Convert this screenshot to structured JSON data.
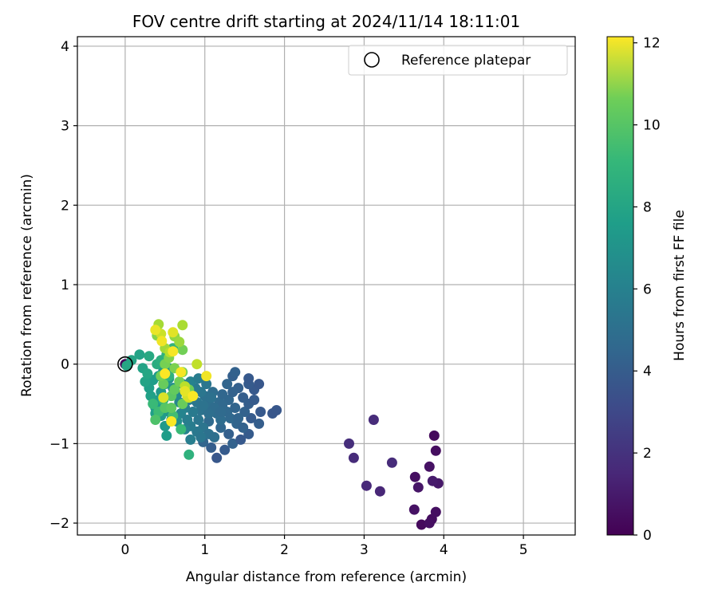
{
  "chart_data": {
    "type": "scatter",
    "title": "FOV centre drift starting at 2024/11/14 18:11:01",
    "xlabel": "Angular distance from reference (arcmin)",
    "ylabel": "Rotation from reference (arcmin)",
    "xlim": [
      -0.6,
      5.65
    ],
    "ylim": [
      -2.15,
      4.12
    ],
    "xticks": [
      0,
      1,
      2,
      3,
      4,
      5
    ],
    "yticks": [
      -2,
      -1,
      0,
      1,
      2,
      3,
      4
    ],
    "grid": true,
    "legend": {
      "position": "top-right",
      "entries": [
        {
          "label": "Reference platepar",
          "marker": "open-circle"
        }
      ]
    },
    "reference_point": {
      "x": 0,
      "y": 0
    },
    "colorbar": {
      "label": "Hours from first FF file",
      "colormap": "viridis",
      "range": [
        0,
        12.15
      ],
      "ticks": [
        0,
        2,
        4,
        6,
        8,
        10,
        12
      ]
    },
    "points": [
      [
        0.0,
        0.0,
        0.2
      ],
      [
        3.72,
        -2.02,
        0.3
      ],
      [
        3.85,
        -1.95,
        0.4
      ],
      [
        3.9,
        -1.86,
        0.5
      ],
      [
        3.63,
        -1.83,
        0.6
      ],
      [
        3.68,
        -1.55,
        0.7
      ],
      [
        3.93,
        -1.5,
        0.8
      ],
      [
        3.86,
        -1.47,
        0.9
      ],
      [
        3.64,
        -1.42,
        0.5
      ],
      [
        3.82,
        -1.29,
        0.6
      ],
      [
        3.9,
        -1.09,
        0.4
      ],
      [
        3.88,
        -0.9,
        0.3
      ],
      [
        3.82,
        -2.0,
        0.5
      ],
      [
        3.2,
        -1.6,
        1.3
      ],
      [
        3.03,
        -1.53,
        1.4
      ],
      [
        3.35,
        -1.24,
        1.5
      ],
      [
        2.87,
        -1.18,
        1.5
      ],
      [
        2.81,
        -1.0,
        1.6
      ],
      [
        3.12,
        -0.7,
        1.5
      ],
      [
        1.15,
        -1.18,
        3.3
      ],
      [
        1.25,
        -1.08,
        3.5
      ],
      [
        1.08,
        -1.05,
        3.6
      ],
      [
        1.35,
        -1.0,
        3.8
      ],
      [
        0.98,
        -0.98,
        3.9
      ],
      [
        1.45,
        -0.95,
        3.4
      ],
      [
        1.3,
        -0.88,
        3.7
      ],
      [
        1.55,
        -0.88,
        3.5
      ],
      [
        1.2,
        -0.8,
        4.0
      ],
      [
        1.68,
        -0.75,
        3.6
      ],
      [
        1.4,
        -0.75,
        3.9
      ],
      [
        1.05,
        -0.72,
        4.2
      ],
      [
        1.58,
        -0.68,
        3.5
      ],
      [
        1.85,
        -0.62,
        3.3
      ],
      [
        1.7,
        -0.6,
        3.4
      ],
      [
        1.9,
        -0.58,
        3.3
      ],
      [
        1.5,
        -0.6,
        3.8
      ],
      [
        1.28,
        -0.6,
        4.1
      ],
      [
        1.15,
        -0.62,
        4.3
      ],
      [
        1.38,
        -0.55,
        3.9
      ],
      [
        1.55,
        -0.5,
        3.6
      ],
      [
        1.62,
        -0.45,
        3.5
      ],
      [
        1.48,
        -0.42,
        3.6
      ],
      [
        1.3,
        -0.45,
        4.0
      ],
      [
        1.18,
        -0.48,
        4.2
      ],
      [
        1.05,
        -0.5,
        4.4
      ],
      [
        1.62,
        -0.32,
        3.4
      ],
      [
        1.68,
        -0.25,
        3.3
      ],
      [
        1.55,
        -0.25,
        3.5
      ],
      [
        1.42,
        -0.3,
        3.7
      ],
      [
        1.35,
        -0.35,
        3.8
      ],
      [
        1.22,
        -0.38,
        4.0
      ],
      [
        1.1,
        -0.35,
        4.3
      ],
      [
        1.0,
        -0.4,
        4.5
      ],
      [
        1.55,
        -0.18,
        3.4
      ],
      [
        1.35,
        -0.15,
        3.7
      ],
      [
        1.38,
        -0.1,
        3.8
      ],
      [
        1.28,
        -0.25,
        3.9
      ],
      [
        1.22,
        -0.52,
        4.1
      ],
      [
        1.12,
        -0.55,
        4.3
      ],
      [
        0.95,
        -0.58,
        4.6
      ],
      [
        0.9,
        -0.48,
        4.8
      ],
      [
        0.85,
        -0.6,
        5.0
      ],
      [
        0.92,
        -0.7,
        4.8
      ],
      [
        0.98,
        -0.8,
        4.7
      ],
      [
        0.9,
        -0.85,
        4.9
      ],
      [
        0.82,
        -0.78,
        5.1
      ],
      [
        1.05,
        -0.88,
        4.5
      ],
      [
        1.12,
        -0.92,
        4.4
      ],
      [
        0.95,
        -0.92,
        4.8
      ],
      [
        0.82,
        -0.95,
        5.2
      ],
      [
        1.2,
        -0.7,
        4.3
      ],
      [
        1.32,
        -0.68,
        4.1
      ],
      [
        1.42,
        -0.68,
        3.9
      ],
      [
        1.48,
        -0.8,
        3.8
      ],
      [
        1.2,
        -0.6,
        4.2
      ],
      [
        1.05,
        -0.62,
        4.4
      ],
      [
        0.98,
        -0.52,
        4.6
      ],
      [
        1.08,
        -0.42,
        4.5
      ],
      [
        0.95,
        -0.35,
        4.8
      ],
      [
        0.88,
        -0.3,
        5.0
      ],
      [
        0.78,
        -0.35,
        5.2
      ],
      [
        0.8,
        -0.45,
        5.1
      ],
      [
        0.75,
        -0.55,
        5.3
      ],
      [
        0.7,
        -0.62,
        5.5
      ],
      [
        0.78,
        -0.7,
        5.2
      ],
      [
        0.75,
        -0.82,
        5.4
      ],
      [
        0.68,
        -0.48,
        5.6
      ],
      [
        0.65,
        -0.38,
        5.8
      ],
      [
        0.6,
        -0.3,
        6.0
      ],
      [
        0.72,
        -0.25,
        5.6
      ],
      [
        0.82,
        -0.22,
        5.4
      ],
      [
        0.92,
        -0.18,
        5.1
      ],
      [
        1.02,
        -0.25,
        4.8
      ],
      [
        0.55,
        -0.18,
        6.2
      ],
      [
        0.5,
        -0.25,
        6.4
      ],
      [
        0.45,
        -0.35,
        6.5
      ],
      [
        0.42,
        -0.45,
        6.6
      ],
      [
        0.38,
        -0.55,
        6.7
      ],
      [
        0.48,
        -0.55,
        6.5
      ],
      [
        0.55,
        -0.6,
        6.4
      ],
      [
        0.58,
        -0.7,
        6.3
      ],
      [
        0.65,
        -0.72,
        6.0
      ],
      [
        0.5,
        -0.78,
        6.5
      ],
      [
        0.52,
        -0.9,
        6.7
      ],
      [
        0.45,
        -0.65,
        6.6
      ],
      [
        0.38,
        -0.62,
        6.8
      ],
      [
        0.35,
        -0.5,
        6.9
      ],
      [
        0.32,
        -0.4,
        6.9
      ],
      [
        0.3,
        -0.3,
        6.8
      ],
      [
        0.35,
        -0.2,
        6.7
      ],
      [
        0.42,
        -0.15,
        6.6
      ],
      [
        0.48,
        -0.08,
        6.5
      ],
      [
        0.55,
        -0.05,
        6.4
      ],
      [
        0.25,
        -0.22,
        7.0
      ],
      [
        0.22,
        -0.05,
        7.0
      ],
      [
        0.28,
        -0.12,
        7.2
      ],
      [
        0.18,
        0.12,
        7.0
      ],
      [
        0.08,
        0.05,
        7.1
      ],
      [
        0.02,
        -0.02,
        7.2
      ],
      [
        0.3,
        0.1,
        7.3
      ],
      [
        0.4,
        0.0,
        7.5
      ],
      [
        0.45,
        0.05,
        7.6
      ],
      [
        0.52,
        0.12,
        7.7
      ],
      [
        0.6,
        0.2,
        7.9
      ],
      [
        0.55,
        -0.15,
        7.8
      ],
      [
        0.48,
        -0.45,
        8.0
      ],
      [
        0.8,
        -1.14,
        7.8
      ],
      [
        0.35,
        -0.5,
        8.2
      ],
      [
        0.42,
        -0.6,
        8.3
      ],
      [
        0.6,
        -0.65,
        8.4
      ],
      [
        0.7,
        -0.82,
        8.2
      ],
      [
        0.38,
        -0.7,
        8.7
      ],
      [
        0.5,
        -0.55,
        8.9
      ],
      [
        0.58,
        -0.4,
        9.0
      ],
      [
        0.62,
        -0.32,
        9.2
      ],
      [
        0.48,
        -0.25,
        9.3
      ],
      [
        0.45,
        -0.15,
        9.5
      ],
      [
        0.5,
        0.0,
        9.6
      ],
      [
        0.55,
        0.08,
        9.8
      ],
      [
        0.62,
        -0.05,
        9.7
      ],
      [
        0.72,
        -0.1,
        9.6
      ],
      [
        0.68,
        -0.22,
        9.5
      ],
      [
        0.8,
        -0.32,
        9.4
      ],
      [
        0.72,
        -0.5,
        9.3
      ],
      [
        0.58,
        -0.55,
        9.1
      ],
      [
        0.72,
        0.18,
        9.5
      ],
      [
        0.4,
        0.36,
        9.9
      ],
      [
        0.62,
        0.35,
        10.1
      ],
      [
        0.68,
        0.28,
        10.3
      ],
      [
        0.5,
        0.2,
        10.4
      ],
      [
        0.42,
        0.5,
        10.5
      ],
      [
        0.72,
        0.49,
        10.6
      ],
      [
        0.56,
        0.15,
        10.8
      ],
      [
        0.75,
        -0.28,
        10.9
      ],
      [
        0.8,
        -0.42,
        11.2
      ],
      [
        0.78,
        -0.4,
        11.4
      ],
      [
        0.48,
        -0.42,
        11.5
      ],
      [
        0.45,
        0.38,
        11.2
      ],
      [
        0.9,
        0.0,
        11.0
      ],
      [
        0.38,
        0.43,
        11.8
      ],
      [
        0.46,
        0.29,
        11.9
      ],
      [
        0.6,
        0.4,
        11.6
      ],
      [
        0.6,
        0.16,
        12.0
      ],
      [
        0.5,
        -0.12,
        12.1
      ],
      [
        0.7,
        -0.1,
        12.0
      ],
      [
        1.02,
        -0.15,
        11.9
      ],
      [
        0.58,
        -0.72,
        12.1
      ],
      [
        0.75,
        -0.34,
        11.7
      ],
      [
        0.85,
        -0.4,
        12.1
      ]
    ]
  }
}
